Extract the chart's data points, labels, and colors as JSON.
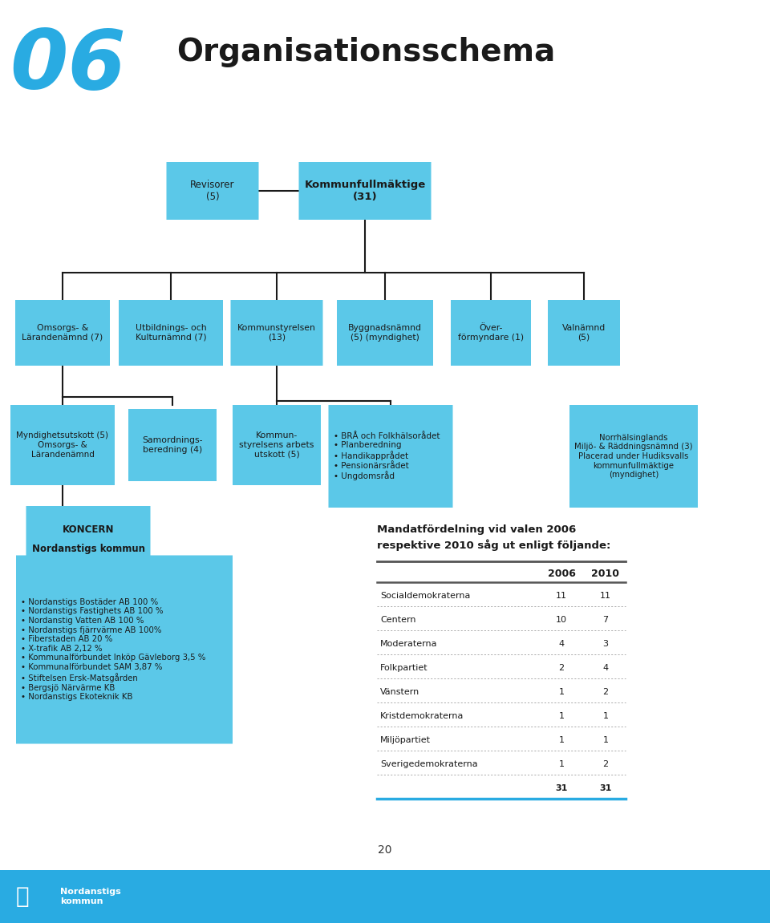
{
  "title_number": "06",
  "title_text": "Organisationsschema",
  "title_number_color": "#29ABE2",
  "title_text_color": "#1a1a1a",
  "box_color": "#5BC8E8",
  "box_text_color": "#1a1a1a",
  "line_color": "#1a1a1a",
  "bg_color": "#ffffff",
  "page_number": "20",
  "table": {
    "title_line1": "Mandatfördelning vid valen 2006",
    "title_line2": "respektive 2010 såg ut enligt följande:",
    "rows": [
      {
        "party": "Socialdemokraterna",
        "v2006": "11",
        "v2010": "11"
      },
      {
        "party": "Centern",
        "v2006": "10",
        "v2010": "7"
      },
      {
        "party": "Moderaterna",
        "v2006": "4",
        "v2010": "3"
      },
      {
        "party": "Folkpartiet",
        "v2006": "2",
        "v2010": "4"
      },
      {
        "party": "Vänstern",
        "v2006": "1",
        "v2010": "2"
      },
      {
        "party": "Kristdemokraterna",
        "v2006": "1",
        "v2010": "1"
      },
      {
        "party": "Miljöpartiet",
        "v2006": "1",
        "v2010": "1"
      },
      {
        "party": "Sverigedemokraterna",
        "v2006": "1",
        "v2010": "2"
      },
      {
        "party": "",
        "v2006": "31",
        "v2010": "31",
        "bold": true,
        "separator_above": true
      }
    ]
  },
  "footer_bar_color": "#29ABE2",
  "footer_logo_text": "Nordanstigs\nkommun"
}
